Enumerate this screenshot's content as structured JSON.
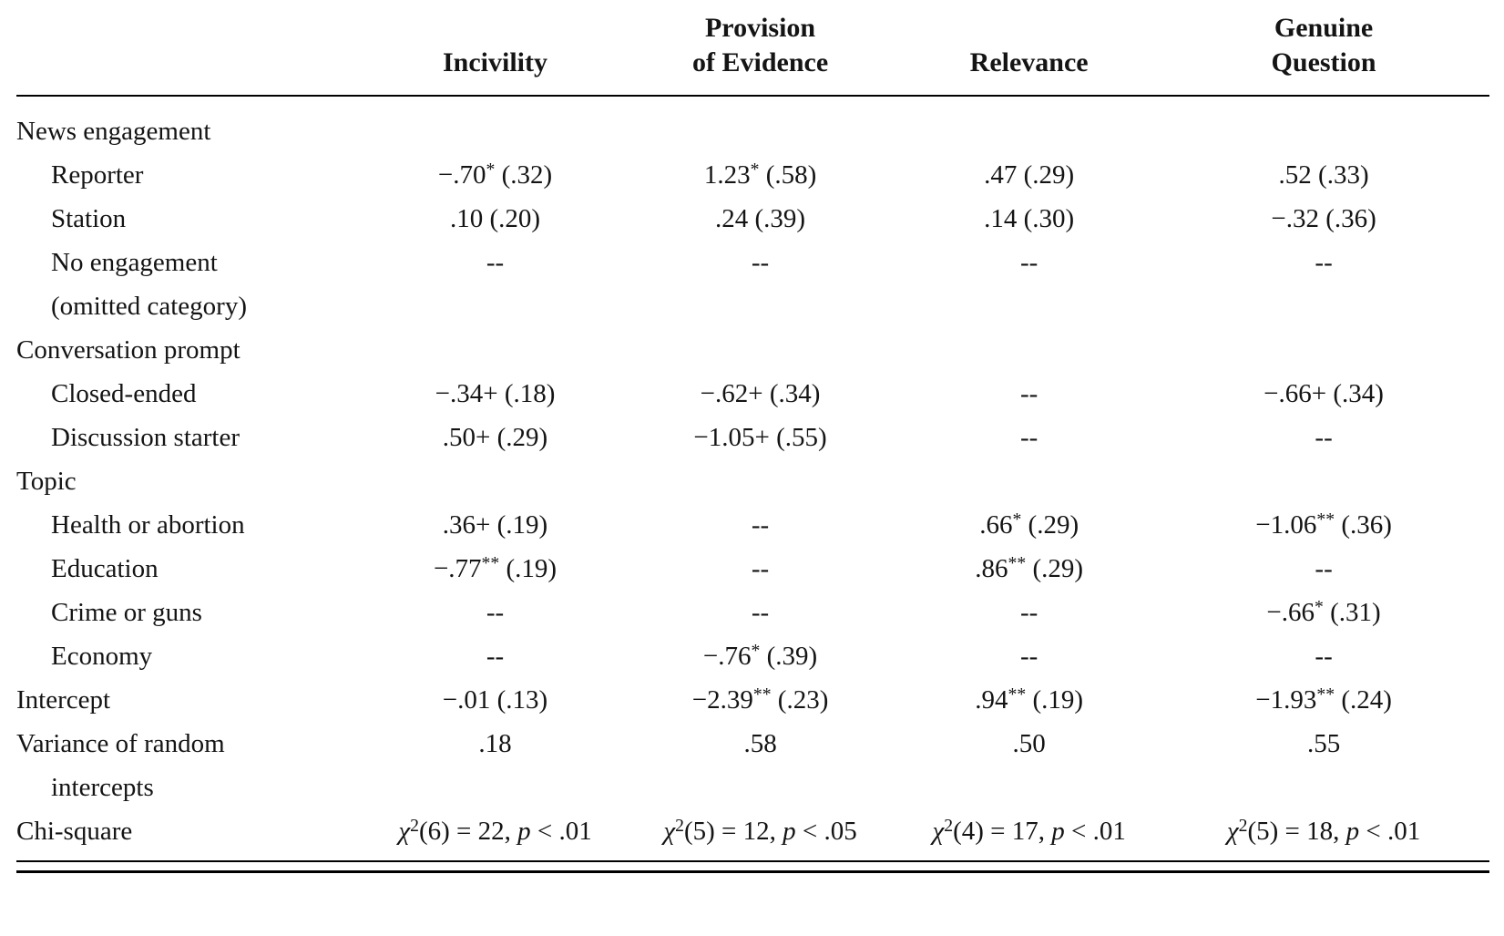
{
  "table": {
    "header": {
      "label_col": "",
      "columns": [
        "Incivility",
        "Provision\nof Evidence",
        "Relevance",
        "Genuine\nQuestion"
      ]
    },
    "rows": [
      {
        "label": "News engagement",
        "indent": 0,
        "cells": [
          "",
          "",
          "",
          ""
        ]
      },
      {
        "label": "Reporter",
        "indent": 1,
        "cells": [
          "−.70* (.32)",
          "1.23* (.58)",
          ".47 (.29)",
          ".52 (.33)"
        ]
      },
      {
        "label": "Station",
        "indent": 1,
        "cells": [
          ".10 (.20)",
          ".24 (.39)",
          ".14 (.30)",
          "−.32 (.36)"
        ]
      },
      {
        "label": "No engagement",
        "label2": "(omitted category)",
        "label2_indent": 0,
        "indent": 1,
        "cells": [
          "--",
          "--",
          "--",
          "--"
        ]
      },
      {
        "label": "Conversation prompt",
        "indent": 0,
        "cells": [
          "",
          "",
          "",
          ""
        ]
      },
      {
        "label": "Closed-ended",
        "indent": 1,
        "cells": [
          "−.34+ (.18)",
          "−.62+ (.34)",
          "--",
          "−.66+ (.34)"
        ]
      },
      {
        "label": "Discussion starter",
        "indent": 1,
        "cells": [
          ".50+ (.29)",
          "−1.05+ (.55)",
          "--",
          "--"
        ]
      },
      {
        "label": "Topic",
        "indent": 0,
        "cells": [
          "",
          "",
          "",
          ""
        ]
      },
      {
        "label": "Health or abortion",
        "indent": 1,
        "cells": [
          ".36+ (.19)",
          "--",
          ".66* (.29)",
          "−1.06** (.36)"
        ]
      },
      {
        "label": "Education",
        "indent": 1,
        "cells": [
          "−.77** (.19)",
          "--",
          ".86** (.29)",
          "--"
        ]
      },
      {
        "label": "Crime or guns",
        "indent": 1,
        "cells": [
          "--",
          "--",
          "--",
          "−.66* (.31)"
        ]
      },
      {
        "label": "Economy",
        "indent": 1,
        "cells": [
          "--",
          "−.76* (.39)",
          "--",
          "--"
        ]
      },
      {
        "label": "Intercept",
        "indent": 0,
        "cells": [
          "−.01 (.13)",
          "−2.39** (.23)",
          ".94** (.19)",
          "−1.93** (.24)"
        ]
      },
      {
        "label": "Variance of random",
        "label2": "intercepts",
        "label2_indent": 1,
        "indent": 0,
        "cells": [
          ".18",
          ".58",
          ".50",
          ".55"
        ]
      },
      {
        "label": "Chi-square",
        "indent": 0,
        "cells": [
          "χ²(6) = 22, p < .01",
          "χ²(5) = 12, p < .05",
          "χ²(4) = 17, p < .01",
          "χ²(5) = 18, p < .01"
        ]
      }
    ]
  }
}
